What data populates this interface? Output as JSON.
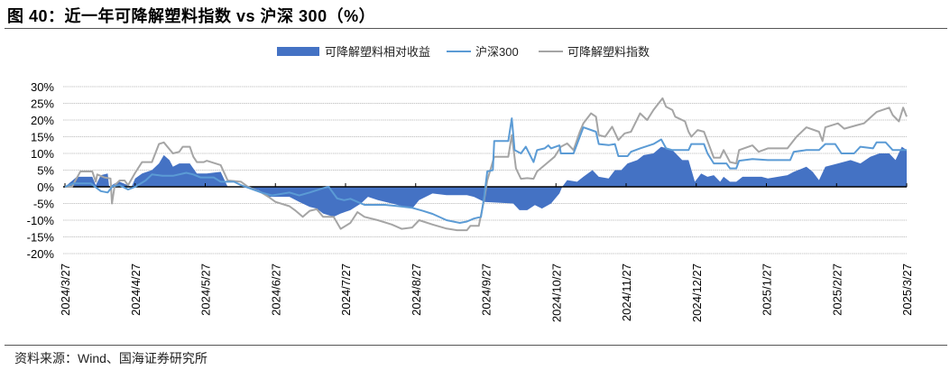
{
  "title": "图 40：近一年可降解塑料指数 vs 沪深 300（%）",
  "source": "资料来源：Wind、国海证券研究所",
  "chart_data": {
    "type": "line",
    "title": "近一年可降解塑料指数 vs 沪深 300（%）",
    "xlabel": "",
    "ylabel": "%",
    "x_unit": "months since 2024/3/27",
    "xlim": [
      0,
      12
    ],
    "ylim": [
      -20,
      30
    ],
    "y_ticks": [
      30,
      25,
      20,
      15,
      10,
      5,
      0,
      -5,
      -10,
      -15,
      -20
    ],
    "y_tick_labels": [
      "30%",
      "25%",
      "20%",
      "15%",
      "10%",
      "5%",
      "0%",
      "-5%",
      "-10%",
      "-15%",
      "-20%"
    ],
    "x_tick_labels": [
      "2024/3/27",
      "2024/4/27",
      "2024/5/27",
      "2024/6/27",
      "2024/7/27",
      "2024/8/27",
      "2024/9/27",
      "2024/10/27",
      "2024/11/27",
      "2024/12/27",
      "2025/1/27",
      "2025/2/27",
      "2025/3/27"
    ],
    "grid": true,
    "legend_position": "top-center",
    "colors": {
      "relative": "#4472C4",
      "hs300": "#5B9BD5",
      "index": "#A5A5A5"
    },
    "series": [
      {
        "name": "可降解塑料相对收益",
        "type": "area",
        "points": [
          [
            0,
            0
          ],
          [
            0.17,
            3
          ],
          [
            0.39,
            3
          ],
          [
            0.44,
            0.5
          ],
          [
            0.51,
            3.5
          ],
          [
            0.61,
            4
          ],
          [
            0.63,
            0
          ],
          [
            0.71,
            1
          ],
          [
            0.78,
            1.5
          ],
          [
            0.95,
            0
          ],
          [
            1.0,
            2.5
          ],
          [
            1.1,
            4
          ],
          [
            1.24,
            5
          ],
          [
            1.34,
            7
          ],
          [
            1.41,
            9.5
          ],
          [
            1.49,
            8
          ],
          [
            1.54,
            6
          ],
          [
            1.63,
            7
          ],
          [
            1.78,
            7
          ],
          [
            1.88,
            4
          ],
          [
            2.02,
            4
          ],
          [
            2.22,
            4.5
          ],
          [
            2.32,
            0
          ],
          [
            2.51,
            0
          ],
          [
            2.76,
            -1
          ],
          [
            2.9,
            -3
          ],
          [
            3.2,
            -3
          ],
          [
            3.34,
            -4.5
          ],
          [
            3.49,
            -6
          ],
          [
            3.59,
            -6.5
          ],
          [
            3.68,
            -8
          ],
          [
            3.83,
            -9
          ],
          [
            3.93,
            -8
          ],
          [
            4.07,
            -7
          ],
          [
            4.22,
            -5
          ],
          [
            4.32,
            -3
          ],
          [
            4.46,
            -4
          ],
          [
            4.66,
            -5
          ],
          [
            4.95,
            -6.5
          ],
          [
            5.05,
            -4
          ],
          [
            5.24,
            -2
          ],
          [
            5.44,
            -2.5
          ],
          [
            5.73,
            -2.5
          ],
          [
            5.83,
            -3
          ],
          [
            5.98,
            -4.5
          ],
          [
            6.39,
            -5
          ],
          [
            6.48,
            -7
          ],
          [
            6.59,
            -7
          ],
          [
            6.7,
            -5.5
          ],
          [
            6.8,
            -6.5
          ],
          [
            6.93,
            -5
          ],
          [
            7.05,
            -2
          ],
          [
            7.09,
            0
          ],
          [
            7.16,
            2
          ],
          [
            7.3,
            1.5
          ],
          [
            7.39,
            3
          ],
          [
            7.52,
            5
          ],
          [
            7.61,
            3
          ],
          [
            7.75,
            2.5
          ],
          [
            7.84,
            5
          ],
          [
            7.93,
            5
          ],
          [
            8.02,
            7
          ],
          [
            8.16,
            8
          ],
          [
            8.25,
            9.5
          ],
          [
            8.39,
            10
          ],
          [
            8.5,
            12
          ],
          [
            8.66,
            11
          ],
          [
            8.8,
            8
          ],
          [
            8.89,
            8
          ],
          [
            8.98,
            1.5
          ],
          [
            9.07,
            4
          ],
          [
            9.16,
            3
          ],
          [
            9.25,
            3.5
          ],
          [
            9.34,
            1.5
          ],
          [
            9.39,
            3
          ],
          [
            9.48,
            1.5
          ],
          [
            9.57,
            1.5
          ],
          [
            9.66,
            3
          ],
          [
            9.93,
            3
          ],
          [
            10.02,
            2.5
          ],
          [
            10.3,
            3.5
          ],
          [
            10.39,
            4.5
          ],
          [
            10.57,
            6
          ],
          [
            10.66,
            4.5
          ],
          [
            10.75,
            2
          ],
          [
            10.84,
            6
          ],
          [
            11.02,
            7
          ],
          [
            11.2,
            8
          ],
          [
            11.34,
            7
          ],
          [
            11.48,
            9
          ],
          [
            11.61,
            10
          ],
          [
            11.75,
            10
          ],
          [
            11.84,
            8
          ],
          [
            11.93,
            12
          ],
          [
            12,
            11
          ]
        ]
      },
      {
        "name": "沪深300",
        "type": "line",
        "points": [
          [
            0,
            0
          ],
          [
            0.12,
            1
          ],
          [
            0.37,
            1
          ],
          [
            0.51,
            -1.3
          ],
          [
            0.61,
            -1.7
          ],
          [
            0.68,
            0.2
          ],
          [
            0.78,
            0.5
          ],
          [
            0.9,
            -0.8
          ],
          [
            1.0,
            0
          ],
          [
            1.15,
            1.9
          ],
          [
            1.24,
            3.7
          ],
          [
            1.39,
            3.3
          ],
          [
            1.54,
            3.3
          ],
          [
            1.73,
            4.2
          ],
          [
            1.83,
            3.7
          ],
          [
            1.93,
            2.8
          ],
          [
            2.12,
            2.8
          ],
          [
            2.22,
            1.5
          ],
          [
            2.41,
            1.5
          ],
          [
            2.51,
            0.5
          ],
          [
            2.8,
            -1.7
          ],
          [
            2.95,
            -2.6
          ],
          [
            3.2,
            -1.7
          ],
          [
            3.34,
            -2.6
          ],
          [
            3.49,
            -1.7
          ],
          [
            3.68,
            -0.4
          ],
          [
            3.76,
            0
          ],
          [
            3.88,
            -3.5
          ],
          [
            3.98,
            -4
          ],
          [
            4.07,
            -3.6
          ],
          [
            4.17,
            -4.5
          ],
          [
            4.27,
            -5.4
          ],
          [
            4.56,
            -5.4
          ],
          [
            4.76,
            -5.8
          ],
          [
            4.95,
            -6.3
          ],
          [
            5.1,
            -7.2
          ],
          [
            5.24,
            -8.1
          ],
          [
            5.44,
            -10
          ],
          [
            5.63,
            -10.8
          ],
          [
            5.73,
            -10.4
          ],
          [
            5.83,
            -9.5
          ],
          [
            5.93,
            -9
          ],
          [
            5.98,
            -2.6
          ],
          [
            6.02,
            4.6
          ],
          [
            6.1,
            5
          ],
          [
            6.12,
            13.7
          ],
          [
            6.32,
            13.7
          ],
          [
            6.37,
            20.5
          ],
          [
            6.41,
            11
          ],
          [
            6.5,
            10
          ],
          [
            6.57,
            12
          ],
          [
            6.68,
            7.4
          ],
          [
            6.73,
            11
          ],
          [
            6.84,
            11.5
          ],
          [
            6.89,
            12.4
          ],
          [
            6.93,
            11.5
          ],
          [
            7.05,
            12.4
          ],
          [
            7.07,
            10
          ],
          [
            7.25,
            10
          ],
          [
            7.39,
            17.8
          ],
          [
            7.57,
            16.5
          ],
          [
            7.61,
            12.8
          ],
          [
            7.75,
            12.5
          ],
          [
            7.84,
            12.8
          ],
          [
            7.89,
            9.2
          ],
          [
            8.02,
            9.2
          ],
          [
            8.07,
            10.5
          ],
          [
            8.2,
            11.5
          ],
          [
            8.39,
            12.8
          ],
          [
            8.5,
            14.2
          ],
          [
            8.57,
            11.5
          ],
          [
            8.66,
            11
          ],
          [
            8.89,
            11
          ],
          [
            8.93,
            12.8
          ],
          [
            9.11,
            12.8
          ],
          [
            9.16,
            10
          ],
          [
            9.25,
            7
          ],
          [
            9.43,
            7
          ],
          [
            9.48,
            5.5
          ],
          [
            9.57,
            5.5
          ],
          [
            9.61,
            7.8
          ],
          [
            9.8,
            8.3
          ],
          [
            10.02,
            8
          ],
          [
            10.34,
            8
          ],
          [
            10.39,
            10.5
          ],
          [
            10.57,
            11
          ],
          [
            10.75,
            11
          ],
          [
            10.84,
            12.8
          ],
          [
            10.98,
            12.8
          ],
          [
            11.07,
            10
          ],
          [
            11.25,
            10
          ],
          [
            11.34,
            12
          ],
          [
            11.52,
            11.5
          ],
          [
            11.57,
            13.3
          ],
          [
            11.7,
            13.3
          ],
          [
            11.8,
            11
          ],
          [
            12,
            11
          ]
        ]
      },
      {
        "name": "可降解塑料指数",
        "type": "line",
        "points": [
          [
            0,
            0
          ],
          [
            0.1,
            0
          ],
          [
            0.22,
            4.6
          ],
          [
            0.39,
            4.6
          ],
          [
            0.44,
            1.5
          ],
          [
            0.46,
            3.7
          ],
          [
            0.56,
            2.8
          ],
          [
            0.65,
            2.5
          ],
          [
            0.67,
            -5
          ],
          [
            0.71,
            0.5
          ],
          [
            0.78,
            1.9
          ],
          [
            0.85,
            1.9
          ],
          [
            0.9,
            0.5
          ],
          [
            1.0,
            4.2
          ],
          [
            1.1,
            7.4
          ],
          [
            1.24,
            7.4
          ],
          [
            1.34,
            12.8
          ],
          [
            1.41,
            13.3
          ],
          [
            1.54,
            10
          ],
          [
            1.63,
            10.5
          ],
          [
            1.68,
            12
          ],
          [
            1.78,
            12
          ],
          [
            1.83,
            9
          ],
          [
            1.88,
            7.4
          ],
          [
            1.98,
            7.4
          ],
          [
            2.02,
            7.8
          ],
          [
            2.22,
            6.5
          ],
          [
            2.32,
            1.9
          ],
          [
            2.51,
            1.5
          ],
          [
            2.61,
            0
          ],
          [
            2.8,
            -1.7
          ],
          [
            2.9,
            -3
          ],
          [
            3.0,
            -4.5
          ],
          [
            3.2,
            -5.8
          ],
          [
            3.29,
            -7.2
          ],
          [
            3.39,
            -9
          ],
          [
            3.49,
            -7.2
          ],
          [
            3.59,
            -6.7
          ],
          [
            3.68,
            -9
          ],
          [
            3.83,
            -9
          ],
          [
            3.93,
            -12.6
          ],
          [
            4.07,
            -10.8
          ],
          [
            4.17,
            -7.6
          ],
          [
            4.27,
            -9
          ],
          [
            4.46,
            -10
          ],
          [
            4.66,
            -11.3
          ],
          [
            4.8,
            -12.6
          ],
          [
            4.95,
            -12.2
          ],
          [
            5.05,
            -10
          ],
          [
            5.24,
            -11.3
          ],
          [
            5.44,
            -12.5
          ],
          [
            5.59,
            -13
          ],
          [
            5.73,
            -13
          ],
          [
            5.78,
            -11.7
          ],
          [
            5.9,
            -11.7
          ],
          [
            5.98,
            -3.5
          ],
          [
            6.02,
            1.9
          ],
          [
            6.12,
            9
          ],
          [
            6.32,
            9
          ],
          [
            6.37,
            15.5
          ],
          [
            6.43,
            5.5
          ],
          [
            6.5,
            2.4
          ],
          [
            6.59,
            2.6
          ],
          [
            6.68,
            2.4
          ],
          [
            6.73,
            4.6
          ],
          [
            6.84,
            6.5
          ],
          [
            6.98,
            9
          ],
          [
            7.07,
            12
          ],
          [
            7.16,
            13
          ],
          [
            7.25,
            11
          ],
          [
            7.34,
            16.5
          ],
          [
            7.39,
            19
          ],
          [
            7.5,
            22
          ],
          [
            7.57,
            21
          ],
          [
            7.61,
            15.5
          ],
          [
            7.7,
            15
          ],
          [
            7.8,
            18
          ],
          [
            7.89,
            14
          ],
          [
            7.98,
            16
          ],
          [
            8.07,
            16.5
          ],
          [
            8.2,
            22
          ],
          [
            8.3,
            20
          ],
          [
            8.39,
            23
          ],
          [
            8.52,
            26.5
          ],
          [
            8.57,
            24
          ],
          [
            8.66,
            23
          ],
          [
            8.7,
            21
          ],
          [
            8.84,
            19.6
          ],
          [
            8.89,
            16.5
          ],
          [
            8.93,
            15
          ],
          [
            9.02,
            17
          ],
          [
            9.11,
            16.5
          ],
          [
            9.25,
            8.7
          ],
          [
            9.34,
            8.7
          ],
          [
            9.39,
            11
          ],
          [
            9.48,
            7.4
          ],
          [
            9.57,
            7
          ],
          [
            9.61,
            11
          ],
          [
            9.8,
            12.4
          ],
          [
            9.89,
            10.5
          ],
          [
            10.02,
            11.5
          ],
          [
            10.3,
            11.5
          ],
          [
            10.43,
            15
          ],
          [
            10.57,
            17.8
          ],
          [
            10.75,
            16.5
          ],
          [
            10.8,
            13.7
          ],
          [
            10.84,
            17.8
          ],
          [
            11.02,
            19
          ],
          [
            11.11,
            17.4
          ],
          [
            11.3,
            18.5
          ],
          [
            11.39,
            19
          ],
          [
            11.57,
            22.4
          ],
          [
            11.75,
            23.7
          ],
          [
            11.8,
            21.5
          ],
          [
            11.89,
            19.6
          ],
          [
            11.95,
            23.7
          ],
          [
            12,
            21
          ]
        ]
      }
    ]
  }
}
